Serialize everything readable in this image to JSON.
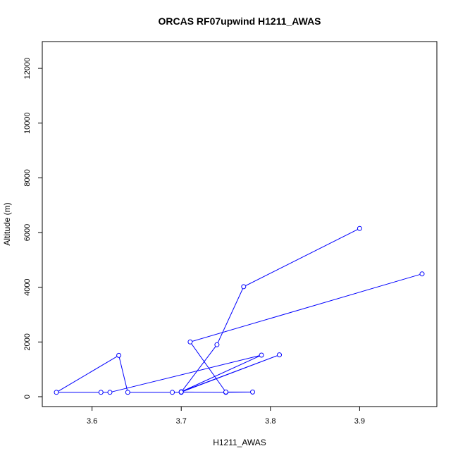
{
  "chart_data": {
    "type": "line",
    "title": "ORCAS RF07upwind H1211_AWAS",
    "xlabel": "H1211_AWAS",
    "ylabel": "Altitude (m)",
    "xlim": [
      3.56,
      3.97
    ],
    "ylim": [
      0,
      12800
    ],
    "xticks": [
      "3.6",
      "3.7",
      "3.8",
      "3.9"
    ],
    "yticks": [
      "0",
      "2000",
      "4000",
      "6000",
      "8000",
      "10000",
      "12000"
    ],
    "grid": false,
    "series": [
      {
        "color": "#0000ff",
        "markers": "open-circle",
        "points": [
          {
            "x": 3.9,
            "y": 6150
          },
          {
            "x": 3.77,
            "y": 4020
          },
          {
            "x": 3.74,
            "y": 1900
          },
          {
            "x": 3.7,
            "y": 170
          },
          {
            "x": 3.81,
            "y": 1530
          },
          {
            "x": 3.7,
            "y": 180
          },
          {
            "x": 3.79,
            "y": 1520
          },
          {
            "x": 3.62,
            "y": 160
          },
          {
            "x": 3.61,
            "y": 160
          },
          {
            "x": 3.56,
            "y": 160
          },
          {
            "x": 3.63,
            "y": 1510
          },
          {
            "x": 3.64,
            "y": 160
          },
          {
            "x": 3.69,
            "y": 160
          },
          {
            "x": 3.7,
            "y": 160
          },
          {
            "x": 3.7,
            "y": 170
          },
          {
            "x": 3.75,
            "y": 160
          },
          {
            "x": 3.78,
            "y": 170
          },
          {
            "x": 3.75,
            "y": 170
          },
          {
            "x": 3.71,
            "y": 2000
          },
          {
            "x": 3.97,
            "y": 4490
          }
        ]
      }
    ]
  }
}
